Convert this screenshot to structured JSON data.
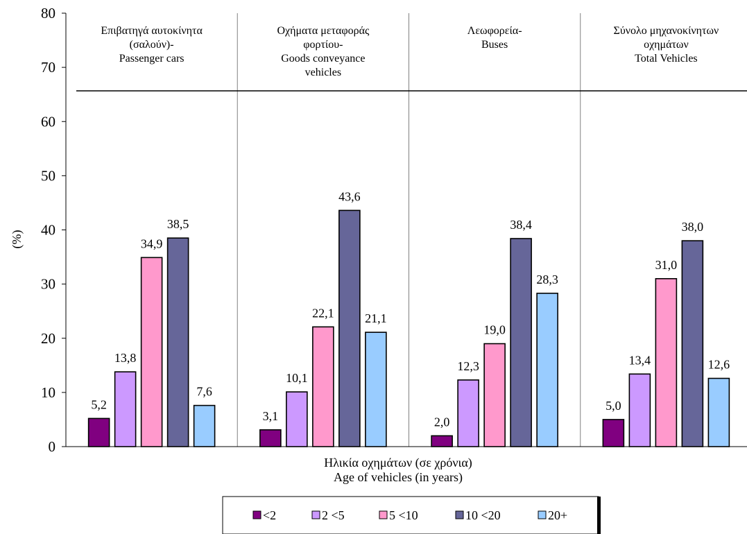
{
  "chart_data": {
    "type": "bar",
    "ylabel": "(%)",
    "xlabel": [
      "Ηλικία οχημάτων (σε χρόνια)",
      "Age of vehicles (in years)"
    ],
    "ylim": [
      0,
      80
    ],
    "yticks": [
      0,
      10,
      20,
      30,
      40,
      50,
      60,
      70,
      80
    ],
    "grid": false,
    "legend_position": "bottom",
    "categories": [
      [
        "Επιβατηγά αυτοκίνητα",
        "(σαλούν)-",
        "Passenger cars"
      ],
      [
        "Οχήματα μεταφοράς",
        "φορτίου-",
        "Goods conveyance",
        "vehicles"
      ],
      [
        "Λεωφορεία-",
        "Buses"
      ],
      [
        "Σύνολο μηχανοκίνητων",
        "οχημάτων",
        "Total Vehicles"
      ]
    ],
    "series": [
      {
        "name": "<2",
        "color": "#800080",
        "values": [
          5.2,
          3.1,
          2.0,
          5.0
        ],
        "labels": [
          "5,2",
          "3,1",
          "2,0",
          "5,0"
        ]
      },
      {
        "name": "2 <5",
        "color": "#CC99FF",
        "values": [
          13.8,
          10.1,
          12.3,
          13.4
        ],
        "labels": [
          "13,8",
          "10,1",
          "12,3",
          "13,4"
        ]
      },
      {
        "name": "5 <10",
        "color": "#FF99CC",
        "values": [
          34.9,
          22.1,
          19.0,
          31.0
        ],
        "labels": [
          "34,9",
          "22,1",
          "19,0",
          "31,0"
        ]
      },
      {
        "name": "10 <20",
        "color": "#666699",
        "values": [
          38.5,
          43.6,
          38.4,
          38.0
        ],
        "labels": [
          "38,5",
          "43,6",
          "38,4",
          "38,0"
        ]
      },
      {
        "name": "20+",
        "color": "#99CCFF",
        "values": [
          7.6,
          21.1,
          28.3,
          12.6
        ],
        "labels": [
          "7,6",
          "21,1",
          "28,3",
          "12,6"
        ]
      }
    ]
  }
}
